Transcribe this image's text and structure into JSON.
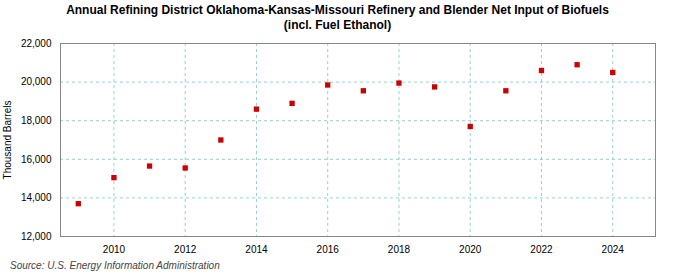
{
  "chart_data": {
    "type": "scatter",
    "title": "Annual Refining District Oklahoma-Kansas-Missouri Refinery and Blender Net Input of Biofuels\n(incl. Fuel Ethanol)",
    "ylabel": "Thousand Barrels",
    "source": "Source: U.S. Energy Information Administration",
    "x": [
      2009,
      2010,
      2011,
      2012,
      2013,
      2014,
      2015,
      2016,
      2017,
      2018,
      2019,
      2020,
      2021,
      2022,
      2023,
      2024
    ],
    "values": [
      13700,
      15050,
      15650,
      15550,
      17000,
      18600,
      18900,
      19850,
      19550,
      19950,
      19750,
      17700,
      19550,
      20600,
      20900,
      20500
    ],
    "color": "#cc0000",
    "marker": "square",
    "xlim": [
      2008.5,
      2025.2
    ],
    "xticks": [
      2010,
      2012,
      2014,
      2016,
      2018,
      2020,
      2022,
      2024
    ],
    "ylim": [
      12000,
      22000
    ],
    "yticks": [
      {
        "value": 12000,
        "label": "12,000"
      },
      {
        "value": 14000,
        "label": "14,000"
      },
      {
        "value": 16000,
        "label": "16,000"
      },
      {
        "value": 18000,
        "label": "18,000"
      },
      {
        "value": 20000,
        "label": "20,000"
      },
      {
        "value": 22000,
        "label": "22,000"
      }
    ],
    "grid": true
  }
}
